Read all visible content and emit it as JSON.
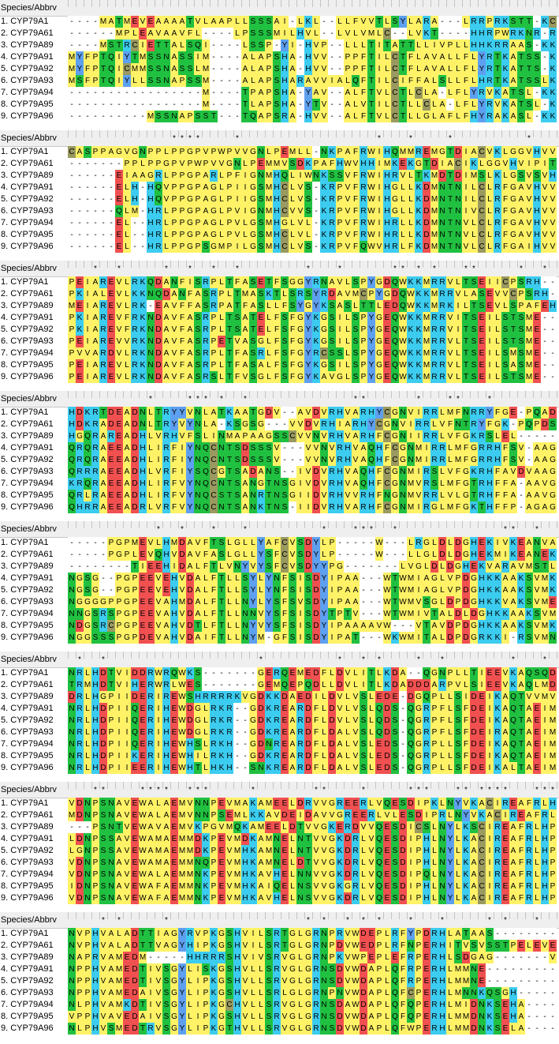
{
  "header_label": "Species/Abbrv",
  "colors": {
    "A": "#FFF266",
    "G": "#FFF266",
    "V": "#FFF266",
    "L": "#FFF266",
    "I": "#FFF266",
    "P": "#FFF266",
    "F": "#FFF266",
    "M": "#FFF266",
    "W": "#FFF266",
    "S": "#20C040",
    "T": "#20C040",
    "N": "#20C040",
    "Q": "#20C040",
    "K": "#3CCCF0",
    "R": "#3CCCF0",
    "H": "#3CCCF0",
    "D": "#F05050",
    "E": "#F05050",
    "C": "#9A9A60",
    "Y": "#5EA0F0",
    "-": "#FFFFFF"
  },
  "species": [
    "1. CYP79A1",
    "2. CYP79A61",
    "3. CYP79A89",
    "4. CYP79A91",
    "5. CYP79A92",
    "6. CYP79A93",
    "7. CYP79A94",
    "8. CYP79A95",
    "9. CYP79A96"
  ],
  "blocks": [
    {
      "stars": "",
      "rows": [
        "----MATMEVEAAAATVLAAPLLSSSAI-LKL--LLFVVTLSYLARA---LRRPRKSTT-KCSSTT",
        "------MPLEAVAAVFL----LPSSSMILHVL--LVLVMLC--LVKT----HHRPWRKNR-RCT--",
        "----MSTRCIETTALSQI----LSSP-YI-HVP--LLLTITATTLLIVPLLHHKRRAAS-KKR---",
        "MYFPTQIYTMSSNASSIM----ALAPSHA-HVV--PPFTILCTFLAVALLFLYRTKATSS-KKT--",
        "MYFPTQICMMSSNASSLM----ALAPSHA-HVV--PPFTILCTFLAVALLFLYRTKATTS-KKT--",
        "MSFPTQIYLLSSNAPSSM----ALAPSHARAVVIALQFTILCIFFALSLLFLHRTKATSSLKKT--",
        "-----------------M----TPAPSHA-YAV--ALFTVLCTLCLA-LFLYRVKATSL-KKT---",
        "-----------------M----TLAPSHA-YTV--ALVTILCTLLCLA-LFLYRVKATSL-KKT--",
        "----------MSSNAPSST---TQAPSRA-HVV--ALFTVLCTLLGLAFLFHYRAKASL-KKT---"
      ]
    },
    {
      "stars": "             ****    *                 *   *    *         *   *",
      "rows": [
        "CASPPAGVGNPPLPPGPVPWPVVGNLPEMLL-NKPAFRWIHQMMREMGTDIACVKLGGVHVVSITC",
        "-------PPLPPGPVPWPVVGNLPEMMVSDKPAFHWVHHIMKEKGTDIACIKLGGVHVIPITC",
        "------EIAAGRLPPGPARLPFIGNMHQLIWNKSSVFRWIHRVLTKMDTDIMSLKLGSVSVHVVVV",
        "------ELH-HQVPPGPAGLPIIGSMHCLVS-KRPVFRWIHGLLKDMNTNILCLRFGAVHVVVVAC",
        "------ELH-HQVPPGPAGLPIIGSMHCLVS-KRPVFRWIHGLLKDMNTNILCLRFGAVHVVVVAC",
        "------QLM-HRLPPGPAGLPVIGNMHCVVS-KRPVFRWIHGLLKDMNTNIVCLRFGAVHVVVVAC",
        "------EL--HRLPPGPAGLPVLGSMHGLVL-KRPVFRWIHRLLKDMNTNVLCLRFGAVHVVVVAC",
        "------EL--HRLPPGPAGLPVLGSMHCLVL-KRPVFRWIHRLLKDMNTNVLCLRFGAVHVVVVAC",
        "------EL--HRLPPGPSGMPILGSMHCLVS-KRPVFQWVHRLFKDMNTNVLCLRFGAIHVVVVAC"
      ]
    },
    {
      "stars": "   *  *     *  *  *  *        *   *      ** * *   **     *  *",
      "rows": [
        "PEIAREVLRKQDANFISRPLTFASETFSGGYRNAVLSPYGDQWKKMRRVLTSEIICPSRH---AWL",
        "PKIALEVLKKNQDANFASRPLTMASKTLSRSYRDAVMCPYGDQWKKMRRVLASEVVCPSRH--RWL",
        "MEIAREVLRK-EAVFFASRPATFASLLFSYGYKSASLTTLEDQWKKMRKILTSEVLSPAFEHQQQL",
        "PKIAREVFRKNDAVFASRPLTSATELFSFGYKGSILSPYGEQWKKMRRVITSEILSTSME---RRL",
        "PKIAREVFRKNDAVFASRPLTSATELFSFGYKGSILSPYGEQWKKMRRVITSEILSTSME---RRL",
        "PEIAREVVRKNDAVFASRPETVASGLFSFGYKGSILSPYGEQWKKMRRVLTSEILSTSME---RRL",
        "PVVARDVLRKNDAVFASRPLTFASRLFSFGYRCSSLSPYGEQWKKMRRVLTSEILSMSME---QRL",
        "PEIAREVLRKNDAVFASRPLTFASALFSFGYKGSILSPYGEQWKKMRRVLTSEILSASME---KRL",
        "PEIAREVLRKNDAVFASRSLTFVSGLFSFGYKAVGLSPYGEQWKKMRRVLTSEILSTSME---QRL"
      ]
    },
    {
      "stars": "          *    *** *  *             **      *   **   *",
      "rows": [
        "HDKRTDEADNLTRYYVNLATKAATGDV--AVDVRHVARHYCGNVIRRLMFNRRYFGE-PQADGG--",
        "HDKRADEADNLTRYVYNLA-KSGSG---VVDVRHIARHYCGNVIRRLVFNTRYFGK-PQPDSG--",
        "HGQRAREADHLVRHVFSLINMAPAAGSSCVVNVRHVARHFCGNIIRRLVFGKRSLEL--------",
        "QRQRAEEADHLIRFIYNQCNTSDSSSV---VVNVRHVAQHFCGNMIRRLMFGRRHFSV-AAGAAG--",
        "QRQRAEEADHLIRFIYNQCNTSDSSSV---VVNVRHVAQHFCGNMIRRLMFGRRHFSV-AAGAAG--",
        "QRRRAEEADHLVRFIYSQCGTSADANS--IVDVRHVAQHFCGNMIRSLVFGKRHFAVDVAAGAG--",
        "KRQRAEEADHLIRFVYNQCNTSANGTNSGIVDVRHVAQHFCGNMVRSLMFGTRHFFA-AAVGSG--",
        "QRLRAEEADHLIRFVYNQCSTSANRTNSGIIDVRHVVRHFNGNMVRRLVLGTRHFFA-AAVGAG--",
        "QHRRAEEADRLVRFVYNQCNTSANKTNS-IIDVRHVARHFCGNMIRGLMFGKTHFFP-AGAGADAV"
      ]
    },
    {
      "stars": "           *  *   *   *         *   ***  *             **  *",
      "rows": [
        "-----PGPMEVLHMDAVFTSLGLLYAFCVSDYLP-----W---LRGLDLDGHEKIVKEANVAV",
        "-----PGPLEVQHVDAVFASLGLLYSFCVSDYLP-----W---LLGLDLDGHEKMIKEANEKV",
        "--------TIEEHIDALFTLVNYVYSFCVSDYYPG-------LVGLDLDGHEKVARAVMSTL",
        "NGSG--PGPEEVEHVDALFTLLSYLYNFSISDYIPAA---WTWMIAGLVPDGHKKAAKSVMKTI",
        "NGSG--PGPEEVEHVDALFTLLSYLYNFSISDYIPAA---WTWMIAGLVPDGHKKAAKSVMKTI",
        "NGGGGPPGPEEVAHMDALFTLLNYLYSFSVSDYIPAA---WTWMVSGLDPDGHKKVAKSVMETI",
        "NNGSRSPGPEEVAHVDALFTLLNNVYSFSISDYTPTV---WTWMIVTALDLDGHKKAAKSVMSTL",
        "NDGSRCPGPEEVAHVDTLFTLLNYVYSFSISDYIPAAAAVW---VTAVDPDGHKKAAKSVMKTI",
        "NGGSSSPGPDEVAHVDAIFTLLNYM-GFSISDYIPAT---WKWMITALDPDGRKKI-RSVMNTL"
      ]
    },
    {
      "stars": " *  *                   *         *  * *    *  *        *   *     *",
      "rows": [
        "NRLHDTVIDDRWRQWKS-------GERQEMEDFLDVLITLKDA--QGNPLLTIEEVKAQSQDITFAA",
        "TRMHDTVIHERWRLWES-------GEMQEPQDLLDVLITLKDADDDARPVLSIEEVKAQLMDITFAS",
        "DRLHGPIIDERIREWSHRRRRKVGDKKDAEDILDVLVSLEDE-DGQPLLSIDEIKAQTVVMVY--",
        "NRLHDPIIQERIHEWDGLRKR--GDKREARDFLDVLVSLQDS-QGRPFLSFDEIKAQTAEIMYAT",
        "NRLHDPIIQERIHEWDGLRKR--GDKREARDFLDVLVSLQDS-QGRPFLSFDEIKAQTAEIMYAT",
        "NRLHDPIIQERIHEWDGLRKR--GDKREARDFLDALVSLQDS-QGRPFLSFDEIRAQTAEIMFAI",
        "NRLHDPIIQERIHEWHSLRKH--GDNREARDFLDALVSLEDS-QGRPLLSFDEIKAQTAEIMFAS",
        "NRLHDPIIKERIHEWHILRKH--GDKREARDFLDALVSLEDS-QGRPLLSFDEIKAQTAEIMFAS",
        "NRLHDPIIEERIHEWHTLHKH--SNKREARDFLDALVSLEDS-QGRPLLSFDEIKALTAEIMFAS"
      ]
    },
    {
      "stars": "   **    ****  ***     *       **    *     ***   ** ****   ***  *  * ********",
      "rows": [
        "VDNPSNAVEWALAEMVNNPEVMAKAMEELDRVVGREERLVQESDIPKLNYVKACIREAFRLHPVAPF",
        "MDNPSNAVEWALAEMVNNPSEMLKKAVDEIDAVVGREERLVLESDIPRLNYVKACIREAFRLHPVAAF",
        "---PSNTVEWAVAEMVKPGVMQKAMEELDTVVGKERDVVQESDICSLNYLKSCIREAFRLHPYHAI",
        "LDNPSSAVEWAMAEMMDKPEVMDKAMNELNTVVGKDRLVQESDIPHLNYLKACIREAFRLHPYHAF",
        "LGNPSSAVEWAMAEMMDKPEVMHKAMNELNTVVGKDRLVQESDIPHLNYLKACIREAFRLHPYHAF",
        "VDNPSNAVEWAMAEMMNQPEVMHKAMNELDTVVGKDRLVQESDIPHLNYLKACIREAFRLHPYHAF",
        "VDNPSNAVEWALAEMMNKPEVMHKAVHELNNVVGKDRLVQESDIPQLNYLKACIREAFRLHPYHAF",
        "IDNPSNAVEWAFAEMMNKPEVMHKAIQELNSVVGKGRLVQESDIPHLNYLKACIREAFRLHPYHPF",
        "VDNPSNAVEWAFAEMMNKPEVMHKAVHELNSVVGKDRLVQESDIPHLNYLKACIREAFRLHPDHAF"
      ]
    },
    {
      "stars": "    * *     *                 * *  * * *   *   *     * *   *   *   **        *",
      "rows": [
        "NVPHVALADTTIAGYRVPKGSHVILSRTGLGRNPRVWDEPLRFYPDRHLATAAS--------DVA",
        "NVPHVALADTTVAGYHIPKGSHVILSRTGLGRNPDVWEDPLRFNPERHITVSVSSTPELEVEVEVS",
        "NAPRVAMEDM-----HHRRRSHVIVSRVGLGRNPKVWPEPLEFRPERHLSDGAG-------VVV",
        "NPPHVAMEDTIVSGYLISKGSHVLLSRVGLGRNSDVWDAPLQFRPERHLMMNE----------HVV",
        "NPPHVAMEDTIVSGYLIPKGSHVLLSRVGLGRNSDVWDAPLQFRPERHLMMNE----------HVV",
        "NPPHVAMEDAIVSGYLIPKGSHVLLSRLGLGRNPNVWDAPLQFCPERHLMNNKQSGH------HVV",
        "NLPHVAMKDTIVSGYLIPKGCHVLLSRVGLGRNSDAWDAPLQFQPERHLMIDNKSEHA-----HVV",
        "VPPHVAVEDAIVSGYLIPKGSHVLLSRVGLGRNSDVWDAPLQFQPERHLMMDNKSEHA-----NVV",
        "NLPHVSMEDTRVSGYLIPKGTHVLLSRVGLGRNSDVWDAPLQFWPERHLMMDNKSELA-----LVE"
      ]
    }
  ]
}
